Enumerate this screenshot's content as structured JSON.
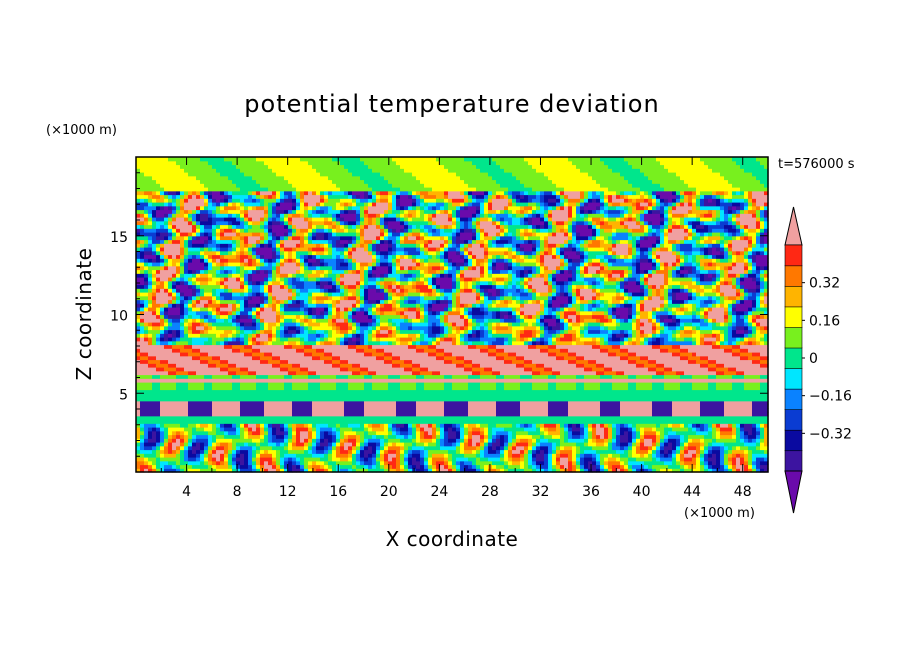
{
  "chart_data": {
    "type": "heatmap",
    "title": "potential temperature deviation",
    "xlabel": "X coordinate",
    "ylabel": "Z coordinate",
    "x_unit": "(×1000 m)",
    "y_unit": "(×1000 m)",
    "time_label": "t=576000 s",
    "xlim": [
      0,
      50
    ],
    "ylim": [
      0,
      20
    ],
    "x_ticks": [
      4,
      8,
      12,
      16,
      20,
      24,
      28,
      32,
      36,
      40,
      44,
      48
    ],
    "y_ticks": [
      5,
      10,
      15
    ],
    "colorbar": {
      "levels": [
        -0.48,
        -0.4,
        -0.32,
        -0.24,
        -0.16,
        -0.08,
        0,
        0.08,
        0.16,
        0.24,
        0.32,
        0.4,
        0.48
      ],
      "colors": [
        "#6a0aab",
        "#3c14a0",
        "#0a0aa0",
        "#0a3cd2",
        "#0a82ff",
        "#00e6ff",
        "#00e68c",
        "#78f01e",
        "#ffff00",
        "#ffb400",
        "#ff7800",
        "#ff2814",
        "#f0a0a0"
      ],
      "labels": [
        "0.32",
        "0.16",
        "0",
        "−0.16",
        "−0.32"
      ],
      "label_values": [
        0.32,
        0.16,
        0,
        -0.16,
        -0.32
      ],
      "extend": "both"
    }
  }
}
